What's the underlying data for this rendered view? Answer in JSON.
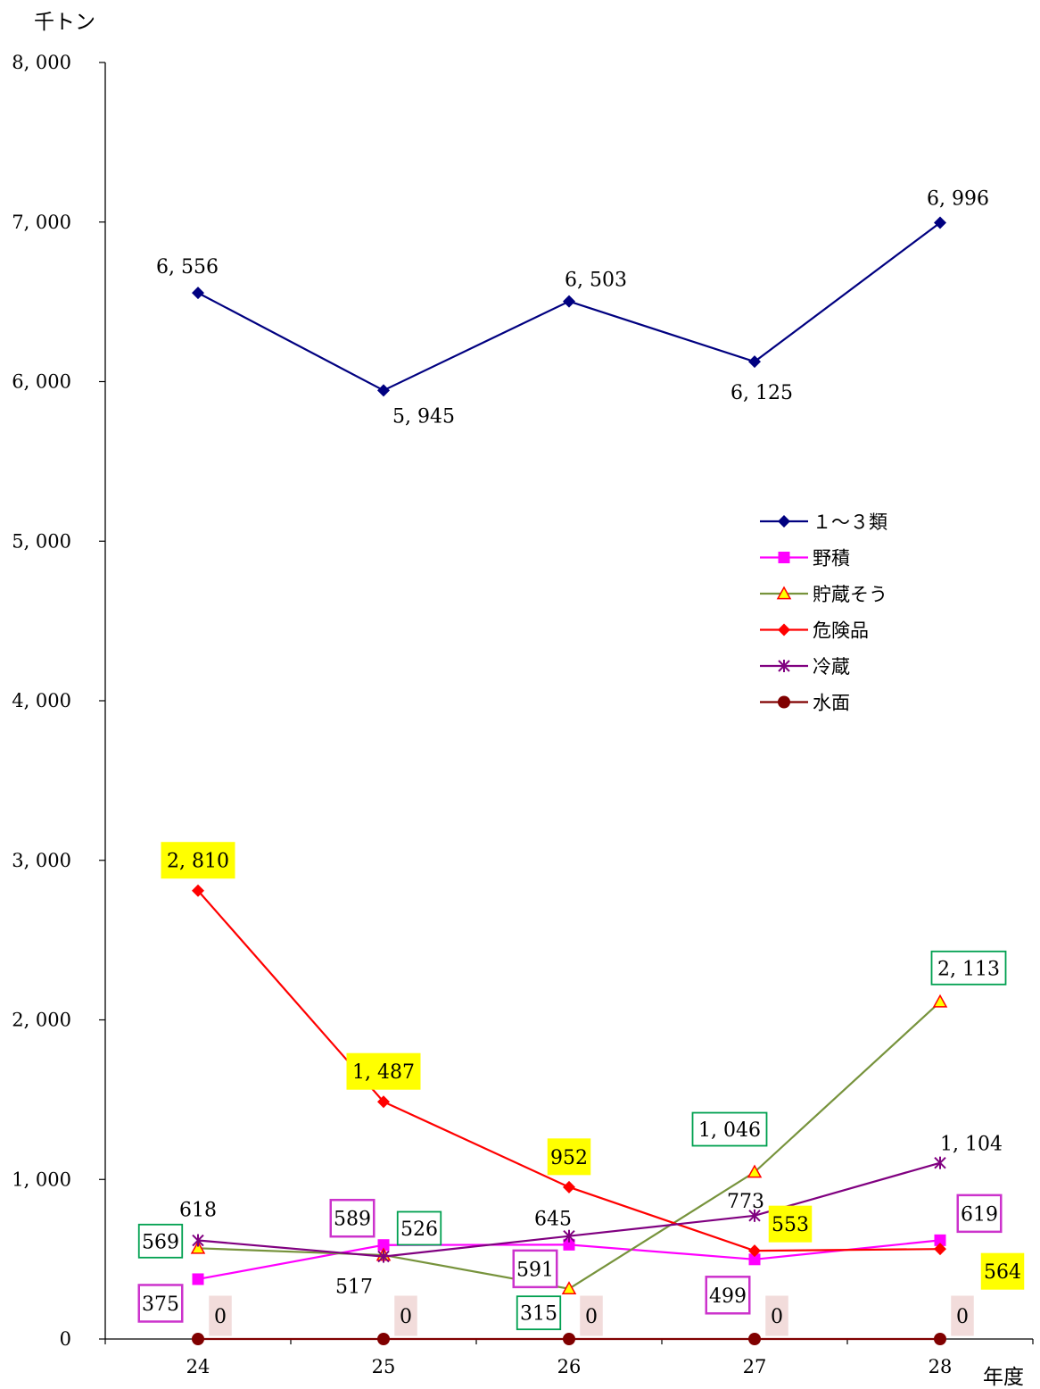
{
  "chart_data": {
    "type": "line",
    "ylabel": "千トン",
    "xlabel": "年度",
    "categories": [
      "24",
      "25",
      "26",
      "27",
      "28"
    ],
    "ylim": [
      0,
      8000
    ],
    "yticks": [
      0,
      1000,
      2000,
      3000,
      4000,
      5000,
      6000,
      7000,
      8000
    ],
    "ytick_labels": [
      "0",
      "1, 000",
      "2, 000",
      "3, 000",
      "4, 000",
      "5, 000",
      "6, 000",
      "7, 000",
      "8, 000"
    ],
    "grid": false,
    "legend_position": "right-middle",
    "series": [
      {
        "name": "１～３類",
        "color": "#000080",
        "marker": "diamond",
        "values": [
          6556,
          5945,
          6503,
          6125,
          6996
        ],
        "labels": [
          "6, 556",
          "5, 945",
          "6, 503",
          "6, 125",
          "6, 996"
        ],
        "label_style": "plain"
      },
      {
        "name": "野積",
        "color": "#FF00FF",
        "marker": "square",
        "values": [
          375,
          589,
          591,
          499,
          619
        ],
        "labels": [
          "375",
          "589",
          "591",
          "499",
          "619"
        ],
        "label_style": "box-magenta"
      },
      {
        "name": "貯蔵そう",
        "color": "#77933C",
        "marker": "triangle",
        "values": [
          569,
          526,
          315,
          1046,
          2113
        ],
        "labels": [
          "569",
          "526",
          "315",
          "1, 046",
          "2, 113"
        ],
        "label_style": "box-green"
      },
      {
        "name": "危険品",
        "color": "#FF0000",
        "marker": "diamond",
        "values": [
          2810,
          1487,
          952,
          553,
          564
        ],
        "labels": [
          "2, 810",
          "1, 487",
          "952",
          "553",
          "564"
        ],
        "label_style": "fill-yellow"
      },
      {
        "name": "冷蔵",
        "color": "#800080",
        "marker": "star",
        "values": [
          618,
          517,
          645,
          773,
          1104
        ],
        "labels": [
          "618",
          "517",
          "645",
          "773",
          "1, 104"
        ],
        "label_style": "plain"
      },
      {
        "name": "水面",
        "color": "#800000",
        "marker": "circle",
        "values": [
          0,
          0,
          0,
          0,
          0
        ],
        "labels": [
          "0",
          "0",
          "0",
          "0",
          "0"
        ],
        "label_style": "fill-pink"
      }
    ]
  }
}
